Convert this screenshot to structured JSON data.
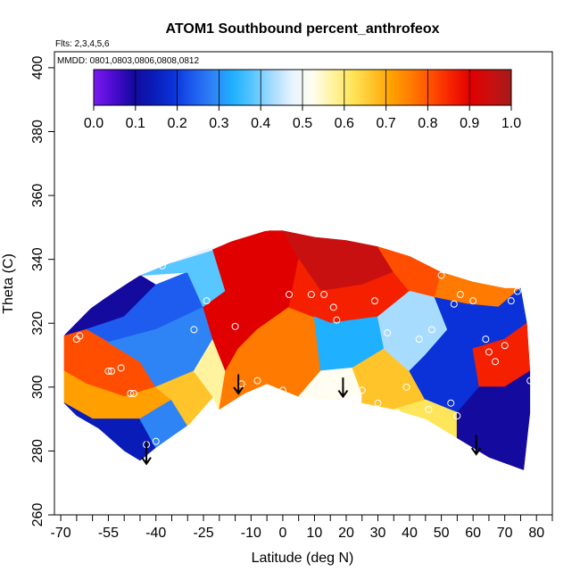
{
  "chart_data": {
    "type": "heatmap",
    "title": "ATOM1 Southbound percent_anthrofeox",
    "subtitle_flights": "Flts: 2,3,4,5,6",
    "subtitle_dates": "MMDD: 0801,0803,0806,0808,0812",
    "xlabel": "Latitude (deg N)",
    "ylabel": "Theta (C)",
    "xlim": [
      -72,
      85
    ],
    "ylim": [
      260,
      405
    ],
    "x_ticks": [
      -70,
      -55,
      -40,
      -25,
      -10,
      0,
      10,
      20,
      30,
      40,
      50,
      60,
      70,
      80
    ],
    "x_minor_ticks": [
      -65,
      -60,
      -50,
      -45,
      -35,
      -30,
      -20,
      -15,
      -5,
      5,
      15,
      25,
      35,
      45,
      55,
      65,
      75,
      85
    ],
    "y_ticks": [
      260,
      280,
      300,
      320,
      340,
      360,
      380,
      400
    ],
    "colorbar": {
      "range": [
        0.0,
        1.0
      ],
      "tick_labels": [
        "0.0",
        "0.1",
        "0.2",
        "0.3",
        "0.4",
        "0.5",
        "0.6",
        "0.7",
        "0.8",
        "0.9",
        "1.0"
      ],
      "colors": [
        "#7a1bf0",
        "#4b0bd0",
        "#140a9e",
        "#0a1cb8",
        "#0a32d8",
        "#1e5cf0",
        "#2f84f5",
        "#1fb0ff",
        "#58c6ff",
        "#a8dcff",
        "#e8f4ff",
        "#fffdf0",
        "#fff3a0",
        "#ffe55a",
        "#ffc42a",
        "#ffa000",
        "#ff7a00",
        "#ff4e00",
        "#f52000",
        "#e00000",
        "#c81010",
        "#a61a1a"
      ]
    },
    "field_outline": [
      [
        -69,
        316
      ],
      [
        -66,
        321
      ],
      [
        -60,
        325
      ],
      [
        -53,
        330
      ],
      [
        -45,
        335
      ],
      [
        -35,
        339
      ],
      [
        -25,
        343
      ],
      [
        -15,
        346
      ],
      [
        -5,
        349
      ],
      [
        0,
        349
      ],
      [
        10,
        347
      ],
      [
        20,
        346
      ],
      [
        30,
        344
      ],
      [
        40,
        341
      ],
      [
        50,
        336
      ],
      [
        60,
        333
      ],
      [
        70,
        331
      ],
      [
        75,
        331
      ],
      [
        77,
        320
      ],
      [
        78,
        305
      ],
      [
        78,
        292
      ],
      [
        76,
        274
      ],
      [
        65,
        278
      ],
      [
        55,
        284
      ],
      [
        45,
        290
      ],
      [
        35,
        293
      ],
      [
        25,
        295
      ],
      [
        15,
        296
      ],
      [
        5,
        297
      ],
      [
        -5,
        301
      ],
      [
        -12,
        298
      ],
      [
        -20,
        293
      ],
      [
        -30,
        288
      ],
      [
        -40,
        281
      ],
      [
        -45,
        277
      ],
      [
        -50,
        280
      ],
      [
        -58,
        287
      ],
      [
        -65,
        291
      ],
      [
        -69,
        295
      ]
    ],
    "field_regions": [
      {
        "value": 0.08,
        "polygon": [
          [
            -69,
            316
          ],
          [
            -60,
            325
          ],
          [
            -45,
            335
          ],
          [
            -40,
            332
          ],
          [
            -50,
            322
          ],
          [
            -62,
            318
          ]
        ]
      },
      {
        "value": 0.22,
        "polygon": [
          [
            -62,
            318
          ],
          [
            -50,
            322
          ],
          [
            -40,
            332
          ],
          [
            -30,
            336
          ],
          [
            -25,
            325
          ],
          [
            -40,
            318
          ],
          [
            -55,
            314
          ]
        ]
      },
      {
        "value": 0.36,
        "polygon": [
          [
            -45,
            335
          ],
          [
            -35,
            339
          ],
          [
            -22,
            343
          ],
          [
            -18,
            330
          ],
          [
            -25,
            325
          ],
          [
            -30,
            336
          ]
        ]
      },
      {
        "value": 0.48,
        "polygon": [
          [
            -35,
            339
          ],
          [
            -25,
            343
          ],
          [
            -20,
            344
          ],
          [
            -22,
            343
          ]
        ]
      },
      {
        "value": 0.8,
        "polygon": [
          [
            -69,
            316
          ],
          [
            -62,
            318
          ],
          [
            -55,
            314
          ],
          [
            -45,
            308
          ],
          [
            -40,
            300
          ],
          [
            -50,
            297
          ],
          [
            -62,
            301
          ],
          [
            -69,
            305
          ]
        ]
      },
      {
        "value": 0.72,
        "polygon": [
          [
            -69,
            305
          ],
          [
            -62,
            301
          ],
          [
            -50,
            297
          ],
          [
            -40,
            300
          ],
          [
            -35,
            296
          ],
          [
            -45,
            290
          ],
          [
            -60,
            290
          ],
          [
            -69,
            295
          ]
        ]
      },
      {
        "value": 0.28,
        "polygon": [
          [
            -55,
            314
          ],
          [
            -40,
            318
          ],
          [
            -25,
            325
          ],
          [
            -22,
            315
          ],
          [
            -28,
            305
          ],
          [
            -40,
            300
          ],
          [
            -45,
            308
          ]
        ]
      },
      {
        "value": 0.12,
        "polygon": [
          [
            -69,
            295
          ],
          [
            -60,
            290
          ],
          [
            -45,
            290
          ],
          [
            -40,
            281
          ],
          [
            -45,
            277
          ],
          [
            -50,
            280
          ],
          [
            -58,
            287
          ],
          [
            -65,
            291
          ]
        ]
      },
      {
        "value": 0.3,
        "polygon": [
          [
            -45,
            290
          ],
          [
            -35,
            296
          ],
          [
            -30,
            288
          ],
          [
            -40,
            281
          ]
        ]
      },
      {
        "value": 0.66,
        "polygon": [
          [
            -40,
            300
          ],
          [
            -28,
            305
          ],
          [
            -22,
            297
          ],
          [
            -30,
            288
          ],
          [
            -35,
            296
          ]
        ]
      },
      {
        "value": 0.55,
        "polygon": [
          [
            -28,
            305
          ],
          [
            -22,
            315
          ],
          [
            -18,
            305
          ],
          [
            -20,
            293
          ],
          [
            -22,
            297
          ]
        ]
      },
      {
        "value": 0.9,
        "polygon": [
          [
            -22,
            343
          ],
          [
            -15,
            346
          ],
          [
            -8,
            349
          ],
          [
            0,
            349
          ],
          [
            5,
            340
          ],
          [
            2,
            325
          ],
          [
            -8,
            318
          ],
          [
            -14,
            312
          ],
          [
            -18,
            305
          ],
          [
            -22,
            315
          ],
          [
            -25,
            325
          ],
          [
            -18,
            330
          ]
        ]
      },
      {
        "value": 0.74,
        "polygon": [
          [
            -18,
            305
          ],
          [
            -14,
            312
          ],
          [
            -8,
            318
          ],
          [
            2,
            325
          ],
          [
            10,
            322
          ],
          [
            12,
            305
          ],
          [
            5,
            297
          ],
          [
            -5,
            301
          ],
          [
            -12,
            298
          ],
          [
            -20,
            293
          ]
        ]
      },
      {
        "value": 0.95,
        "polygon": [
          [
            0,
            349
          ],
          [
            10,
            347
          ],
          [
            20,
            346
          ],
          [
            30,
            344
          ],
          [
            35,
            336
          ],
          [
            25,
            332
          ],
          [
            12,
            330
          ],
          [
            5,
            340
          ]
        ]
      },
      {
        "value": 0.86,
        "polygon": [
          [
            2,
            325
          ],
          [
            5,
            340
          ],
          [
            12,
            330
          ],
          [
            25,
            332
          ],
          [
            35,
            336
          ],
          [
            40,
            330
          ],
          [
            30,
            322
          ],
          [
            15,
            320
          ],
          [
            10,
            322
          ]
        ]
      },
      {
        "value": 0.33,
        "polygon": [
          [
            10,
            322
          ],
          [
            15,
            320
          ],
          [
            30,
            322
          ],
          [
            32,
            312
          ],
          [
            22,
            306
          ],
          [
            12,
            305
          ]
        ]
      },
      {
        "value": 0.52,
        "polygon": [
          [
            12,
            305
          ],
          [
            22,
            306
          ],
          [
            25,
            298
          ],
          [
            15,
            296
          ],
          [
            5,
            297
          ]
        ]
      },
      {
        "value": 0.68,
        "polygon": [
          [
            22,
            306
          ],
          [
            32,
            312
          ],
          [
            40,
            305
          ],
          [
            45,
            296
          ],
          [
            35,
            293
          ],
          [
            25,
            295
          ],
          [
            25,
            298
          ]
        ]
      },
      {
        "value": 0.83,
        "polygon": [
          [
            30,
            344
          ],
          [
            40,
            341
          ],
          [
            50,
            336
          ],
          [
            48,
            328
          ],
          [
            40,
            330
          ],
          [
            35,
            336
          ]
        ]
      },
      {
        "value": 0.42,
        "polygon": [
          [
            30,
            322
          ],
          [
            40,
            330
          ],
          [
            48,
            328
          ],
          [
            52,
            318
          ],
          [
            45,
            310
          ],
          [
            40,
            305
          ],
          [
            32,
            312
          ]
        ]
      },
      {
        "value": 0.2,
        "polygon": [
          [
            40,
            305
          ],
          [
            45,
            310
          ],
          [
            52,
            318
          ],
          [
            60,
            312
          ],
          [
            62,
            300
          ],
          [
            55,
            292
          ],
          [
            45,
            296
          ]
        ]
      },
      {
        "value": 0.6,
        "polygon": [
          [
            45,
            296
          ],
          [
            55,
            292
          ],
          [
            55,
            284
          ],
          [
            45,
            290
          ],
          [
            35,
            293
          ]
        ]
      },
      {
        "value": 0.78,
        "polygon": [
          [
            50,
            336
          ],
          [
            60,
            333
          ],
          [
            70,
            331
          ],
          [
            75,
            331
          ],
          [
            68,
            325
          ],
          [
            58,
            326
          ],
          [
            48,
            328
          ]
        ]
      },
      {
        "value": 0.18,
        "polygon": [
          [
            48,
            328
          ],
          [
            58,
            326
          ],
          [
            68,
            325
          ],
          [
            75,
            331
          ],
          [
            77,
            320
          ],
          [
            70,
            315
          ],
          [
            60,
            312
          ],
          [
            52,
            318
          ]
        ]
      },
      {
        "value": 0.88,
        "polygon": [
          [
            60,
            312
          ],
          [
            70,
            315
          ],
          [
            77,
            320
          ],
          [
            78,
            305
          ],
          [
            70,
            300
          ],
          [
            62,
            300
          ]
        ]
      },
      {
        "value": 0.1,
        "polygon": [
          [
            62,
            300
          ],
          [
            70,
            300
          ],
          [
            78,
            305
          ],
          [
            78,
            292
          ],
          [
            76,
            274
          ],
          [
            65,
            278
          ],
          [
            55,
            284
          ],
          [
            55,
            292
          ]
        ]
      }
    ],
    "flight_points": [
      [
        -65,
        315
      ],
      [
        -64,
        316
      ],
      [
        -55,
        305
      ],
      [
        -54,
        305
      ],
      [
        -51,
        306
      ],
      [
        -48,
        298
      ],
      [
        -47,
        298
      ],
      [
        -40,
        283
      ],
      [
        -43,
        282
      ],
      [
        -38,
        338
      ],
      [
        -28,
        318
      ],
      [
        -24,
        327
      ],
      [
        -22,
        293
      ],
      [
        -15,
        319
      ],
      [
        -13,
        301
      ],
      [
        -8,
        302
      ],
      [
        -5,
        350
      ],
      [
        0,
        299
      ],
      [
        2,
        329
      ],
      [
        9,
        329
      ],
      [
        10,
        300
      ],
      [
        13,
        329
      ],
      [
        14,
        300
      ],
      [
        16,
        325
      ],
      [
        17,
        321
      ],
      [
        16,
        300
      ],
      [
        19,
        300
      ],
      [
        25,
        299
      ],
      [
        29,
        327
      ],
      [
        30,
        295
      ],
      [
        33,
        317
      ],
      [
        36,
        292
      ],
      [
        39,
        300
      ],
      [
        43,
        315
      ],
      [
        46,
        293
      ],
      [
        47,
        318
      ],
      [
        50,
        335
      ],
      [
        53,
        295
      ],
      [
        54,
        326
      ],
      [
        55,
        291
      ],
      [
        56,
        329
      ],
      [
        60,
        327
      ],
      [
        64,
        315
      ],
      [
        65,
        311
      ],
      [
        67,
        308
      ],
      [
        70,
        313
      ],
      [
        72,
        327
      ],
      [
        74,
        330
      ],
      [
        78,
        302
      ],
      [
        79,
        274
      ]
    ],
    "arrows": [
      {
        "lat": -43,
        "theta_top": 283,
        "theta_bottom": 276
      },
      {
        "lat": -14,
        "theta_top": 304,
        "theta_bottom": 298
      },
      {
        "lat": 19,
        "theta_top": 303,
        "theta_bottom": 297
      },
      {
        "lat": 61,
        "theta_top": 285,
        "theta_bottom": 279
      }
    ]
  }
}
